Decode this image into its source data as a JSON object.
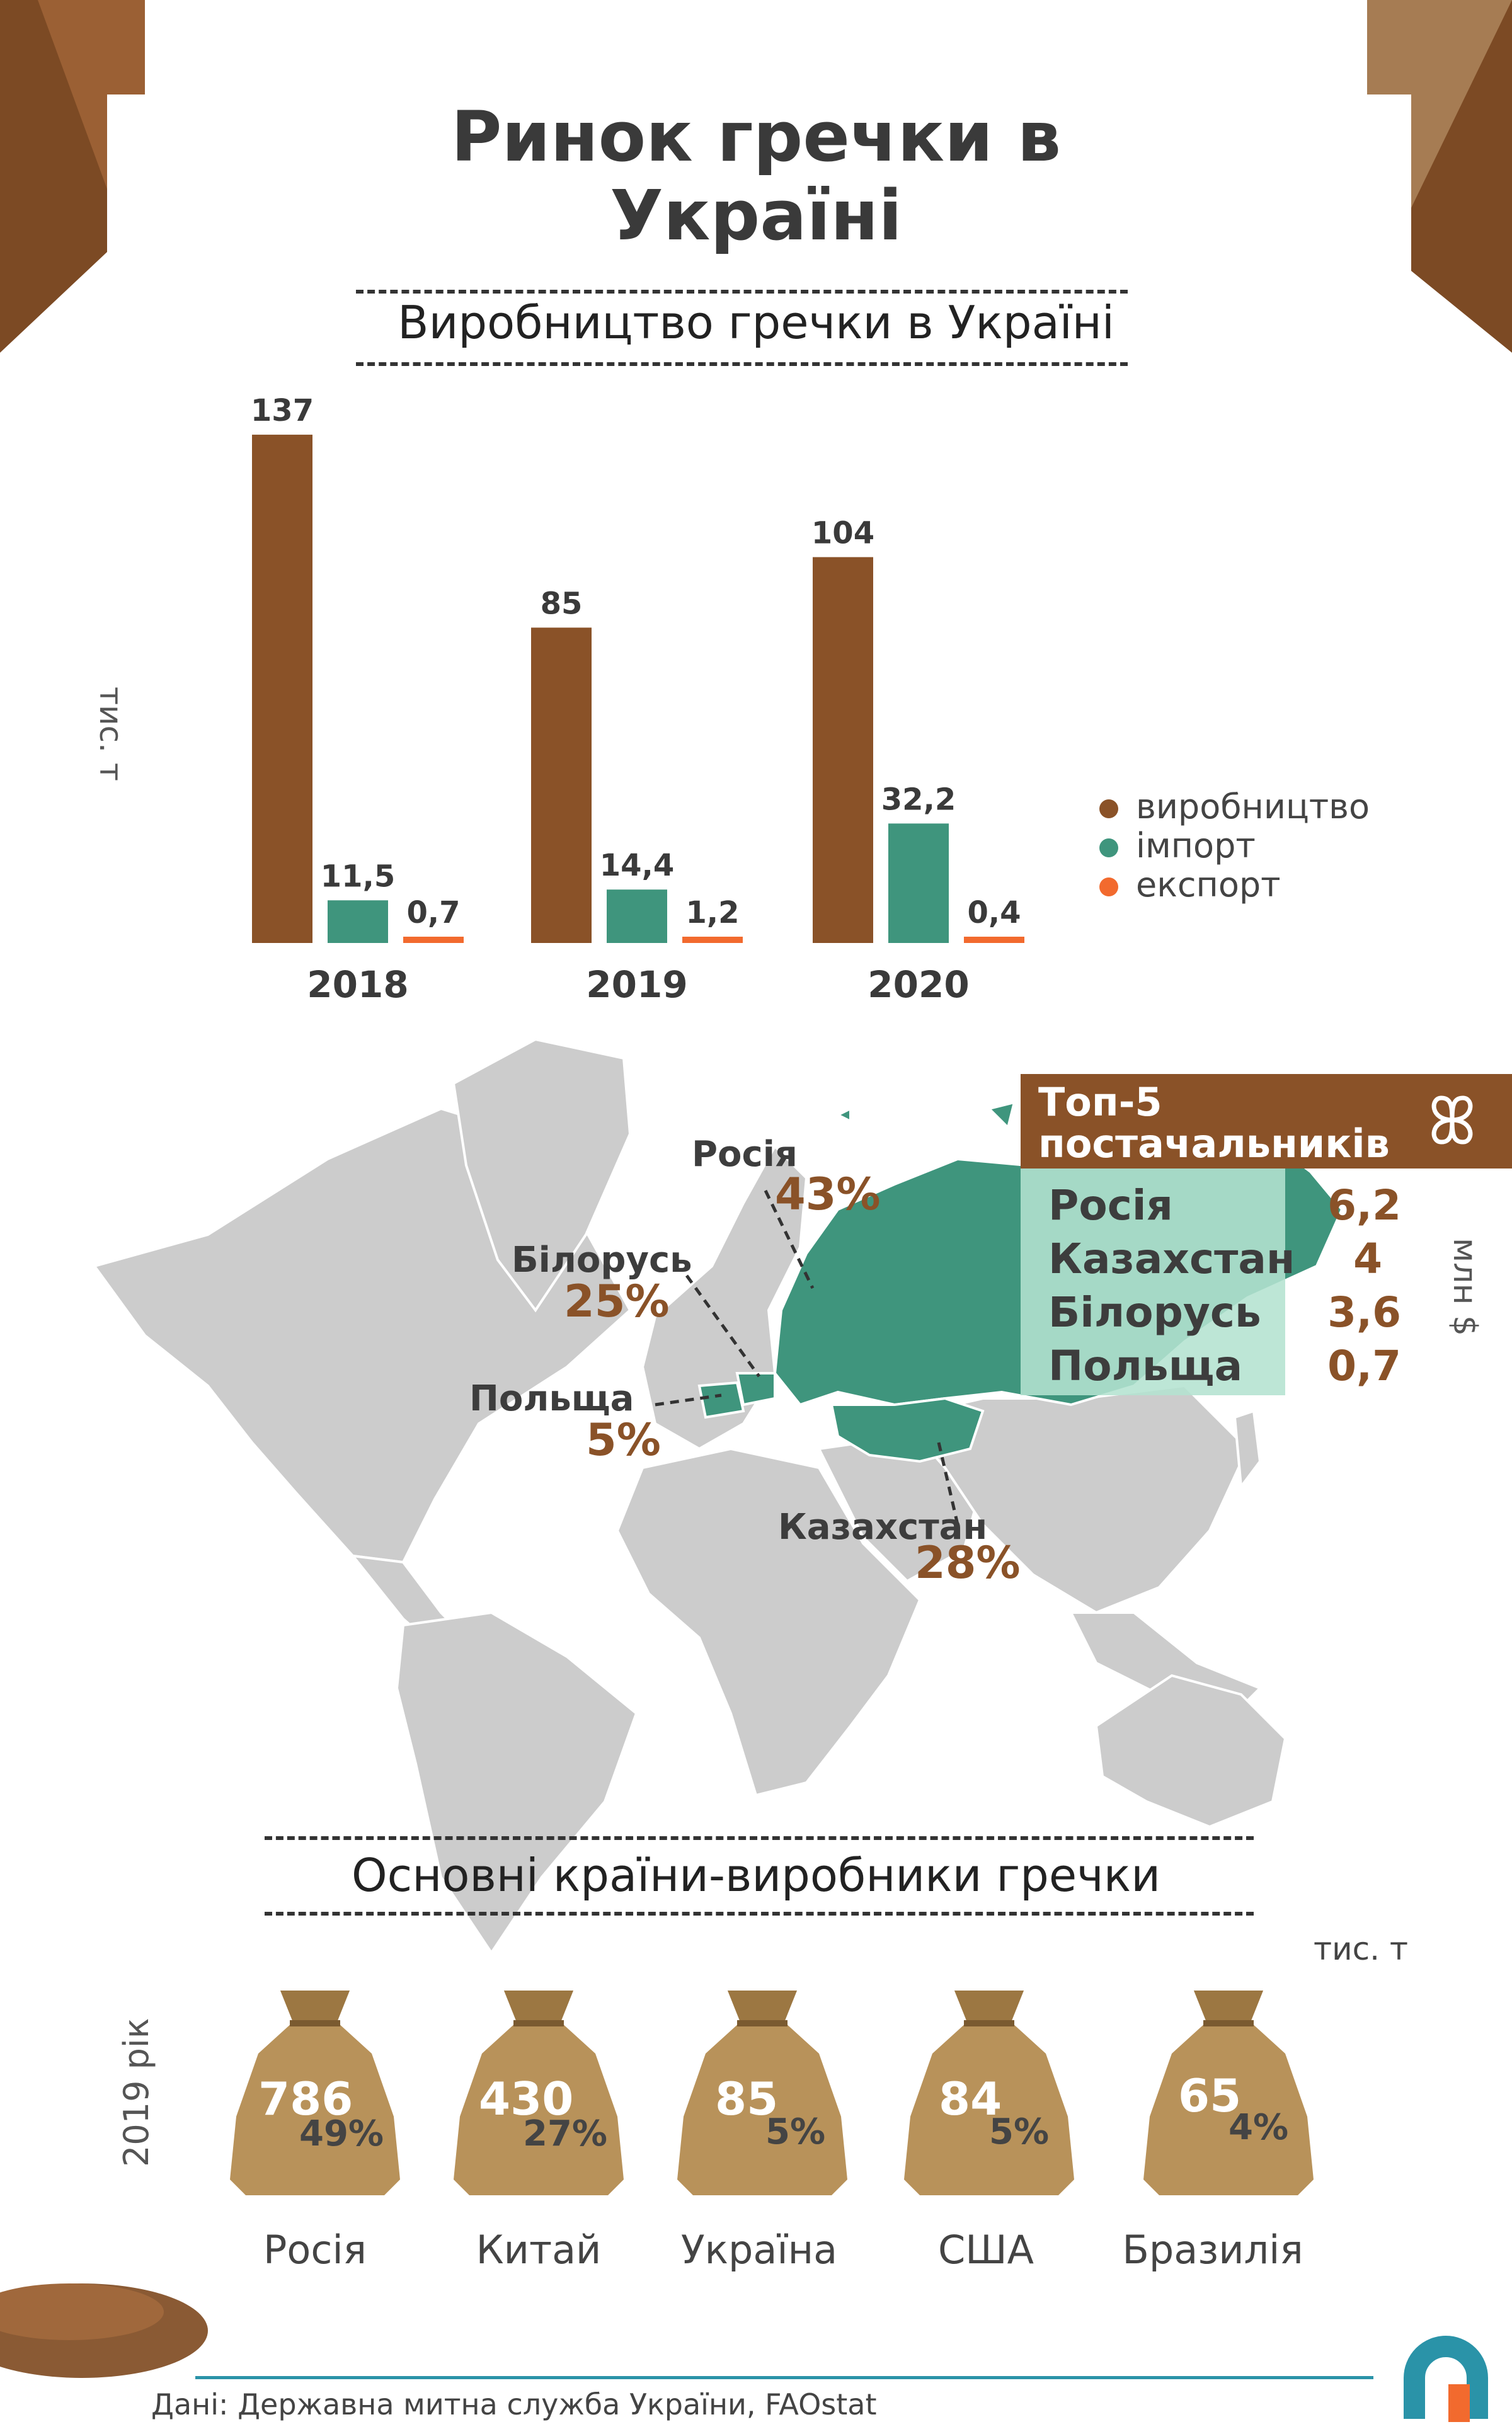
{
  "title_line1": "Ринок гречки в",
  "title_line2": "Україні",
  "production_section": "Виробництво гречки в Україні",
  "chart_data": {
    "type": "bar",
    "categories": [
      "2018",
      "2019",
      "2020"
    ],
    "ylabel": "тис. т",
    "series": [
      {
        "name": "виробництво",
        "color": "#8a5228",
        "values": [
          137,
          85,
          104
        ],
        "labels": [
          "137",
          "85",
          "104"
        ]
      },
      {
        "name": "імпорт",
        "color": "#3f957d",
        "values": [
          11.5,
          14.4,
          32.2
        ],
        "labels": [
          "11,5",
          "14,4",
          "32,2"
        ]
      },
      {
        "name": "експорт",
        "color": "#f26a2e",
        "values": [
          0.7,
          1.2,
          0.4
        ],
        "labels": [
          "0,7",
          "1,2",
          "0,4"
        ]
      }
    ]
  },
  "map": {
    "labels": [
      {
        "country": "Росія",
        "pct": "43%"
      },
      {
        "country": "Білорусь",
        "pct": "25%"
      },
      {
        "country": "Польща",
        "pct": "5%"
      },
      {
        "country": "Казахстан",
        "pct": "28%"
      }
    ],
    "highlight_color": "#3f957d",
    "land_color": "#cccccc"
  },
  "suppliers": {
    "title_line1": "Топ-5",
    "title_line2": "постачальників",
    "icon": "cloverleaf-icon",
    "unit": "млн $",
    "rows": [
      {
        "country": "Росія",
        "value": "6,2"
      },
      {
        "country": "Казахстан",
        "value": "4"
      },
      {
        "country": "Білорусь",
        "value": "3,6"
      },
      {
        "country": "Польща",
        "value": "0,7"
      }
    ]
  },
  "producers_section": "Основні країни-виробники гречки",
  "producers_unit": "тис. т",
  "producers_year": "2019 рік",
  "producers": [
    {
      "country": "Росія",
      "value": "786",
      "pct": "49%"
    },
    {
      "country": "Китай",
      "value": "430",
      "pct": "27%"
    },
    {
      "country": "Україна",
      "value": "85",
      "pct": "5%"
    },
    {
      "country": "США",
      "value": "84",
      "pct": "5%"
    },
    {
      "country": "Бразилія",
      "value": "65",
      "pct": "4%"
    }
  ],
  "source": "Дані: Державна митна служба України, FAOstat",
  "logo": "publisher-logo-icon"
}
